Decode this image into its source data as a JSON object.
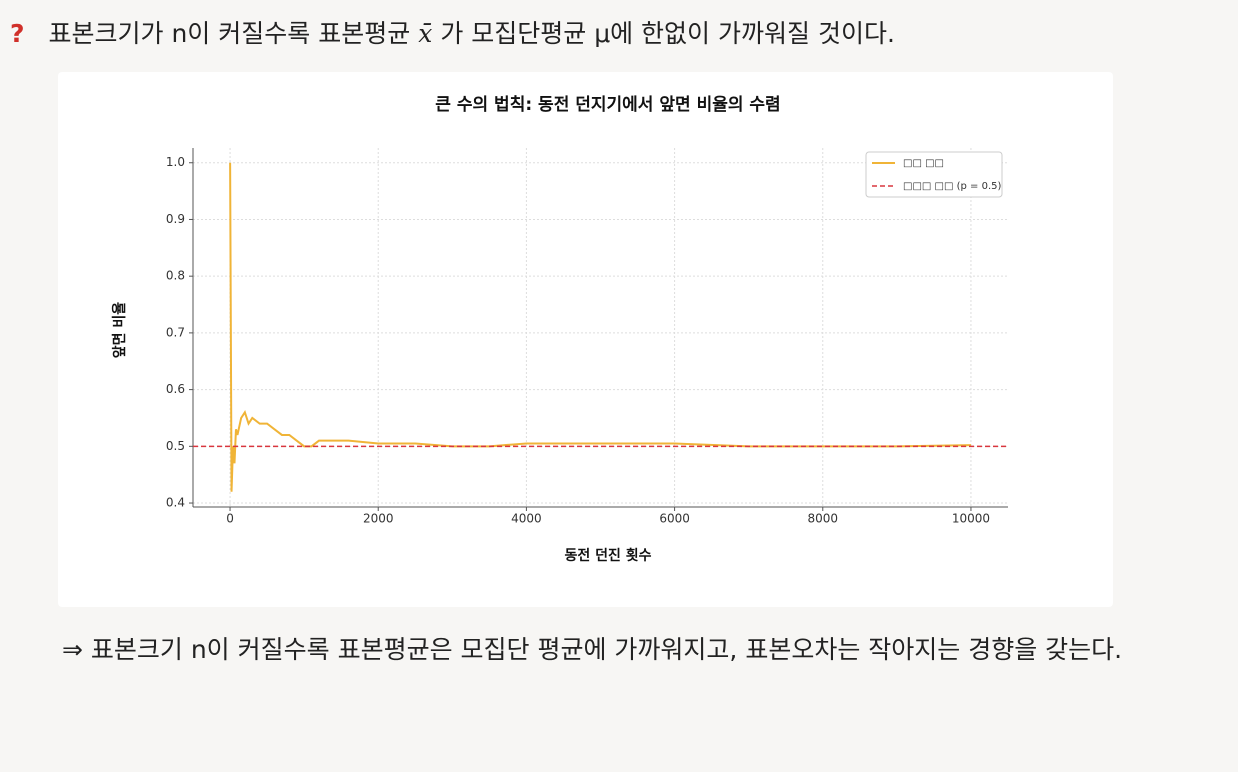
{
  "question": {
    "mark": "?",
    "text_before": "표본크기가 n이 커질수록 표본평균",
    "symbol": "x̄",
    "text_after": "가 모집단평균 μ에 한없이 가까워질 것이다."
  },
  "chart_data": {
    "type": "line",
    "title": "큰 수의 법칙: 동전 던지기에서 앞면 비율의 수렴",
    "x_label": "동전 던진 횟수",
    "y_label": "앞면 비율",
    "x": [
      1,
      20,
      40,
      60,
      80,
      100,
      150,
      200,
      250,
      300,
      400,
      500,
      600,
      700,
      800,
      900,
      1000,
      1100,
      1200,
      1400,
      1600,
      2000,
      2500,
      3000,
      3500,
      4000,
      4500,
      5000,
      5500,
      6000,
      7000,
      8000,
      9000,
      10000
    ],
    "series": [
      {
        "name": "□□ □□",
        "color": "#f0b437",
        "values": [
          1.0,
          0.42,
          0.5,
          0.47,
          0.53,
          0.52,
          0.55,
          0.56,
          0.54,
          0.55,
          0.54,
          0.54,
          0.53,
          0.52,
          0.52,
          0.51,
          0.5,
          0.5,
          0.51,
          0.51,
          0.51,
          0.505,
          0.505,
          0.5,
          0.5,
          0.505,
          0.505,
          0.505,
          0.505,
          0.505,
          0.5,
          0.5,
          0.5,
          0.502
        ]
      }
    ],
    "reference": {
      "name": "□□□ □□ (p = 0.5)",
      "value": 0.5,
      "color": "#d9363e"
    },
    "xlim": [
      -500,
      10500
    ],
    "ylim": [
      0.393,
      1.026
    ],
    "xticks": [
      0,
      2000,
      4000,
      6000,
      8000,
      10000
    ],
    "yticks": [
      0.4,
      0.5,
      0.6,
      0.7,
      0.8,
      0.9,
      {
        "value": 1,
        "label": "1.0"
      }
    ],
    "grid": true,
    "legend": "upper right"
  },
  "conclusion": "⇒ 표본크기 n이 커질수록 표본평균은 모집단 평균에 가까워지고, 표본오차는 작아지는 경향을 갖는다."
}
